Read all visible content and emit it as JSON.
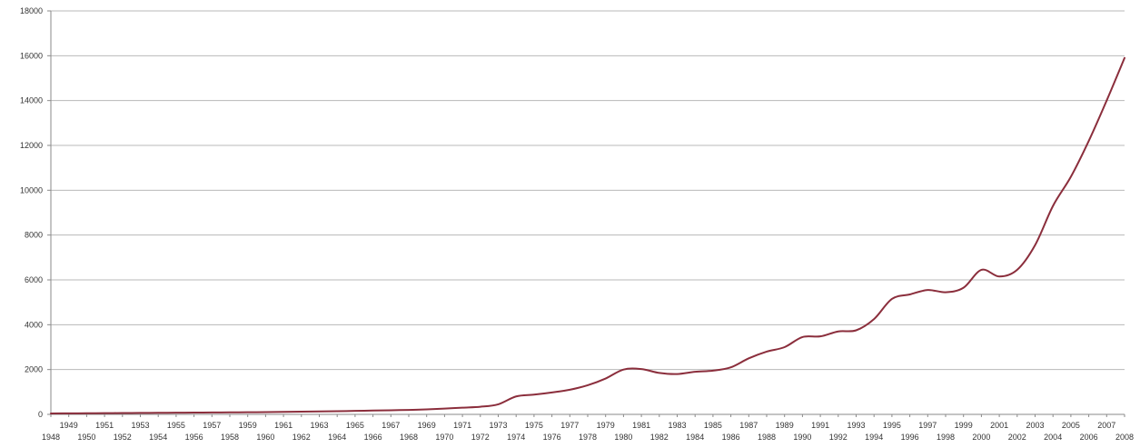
{
  "chart_data": {
    "type": "line",
    "title": "",
    "xlabel": "",
    "ylabel": "",
    "ylim": [
      0,
      18000
    ],
    "y_ticks": [
      0,
      2000,
      4000,
      6000,
      8000,
      10000,
      12000,
      14000,
      16000,
      18000
    ],
    "grid": true,
    "legend": "none",
    "line_color": "#8b2e3c",
    "x_tick_labels": [
      "1948",
      "1949",
      "1950",
      "1951",
      "1952",
      "1953",
      "1954",
      "1955",
      "1956",
      "1957",
      "1958",
      "1959",
      "1960",
      "1961",
      "1962",
      "1963",
      "1964",
      "1965",
      "1966",
      "1967",
      "1968",
      "1969",
      "1970",
      "1971",
      "1972",
      "1973",
      "1974",
      "1975",
      "1976",
      "1977",
      "1978",
      "1979",
      "1980",
      "1981",
      "1982",
      "1983",
      "1984",
      "1985",
      "1986",
      "1987",
      "1988",
      "1989",
      "1990",
      "1991",
      "1992",
      "1993",
      "1994",
      "1995",
      "1996",
      "1997",
      "1998",
      "1999",
      "2000",
      "2001",
      "2002",
      "2003",
      "2004",
      "2005",
      "2006",
      "2007",
      "2008"
    ],
    "series": [
      {
        "x": [
          1948,
          1949,
          1950,
          1951,
          1952,
          1953,
          1954,
          1955,
          1956,
          1957,
          1958,
          1959,
          1960,
          1961,
          1962,
          1963,
          1964,
          1965,
          1966,
          1967,
          1968,
          1969,
          1970,
          1971,
          1972,
          1973,
          1974,
          1975,
          1976,
          1977,
          1978,
          1979,
          1980,
          1981,
          1982,
          1983,
          1984,
          1985,
          1986,
          1987,
          1988,
          1989,
          1990,
          1991,
          1992,
          1993,
          1994,
          1995,
          1996,
          1997,
          1998,
          1999,
          2000,
          2001,
          2002,
          2003,
          2004,
          2005,
          2006,
          2007,
          2008
        ],
        "values": [
          40,
          45,
          50,
          55,
          60,
          65,
          70,
          75,
          80,
          85,
          90,
          95,
          100,
          110,
          120,
          130,
          140,
          155,
          170,
          185,
          200,
          225,
          260,
          300,
          340,
          450,
          800,
          880,
          980,
          1100,
          1300,
          1600,
          2000,
          2020,
          1850,
          1800,
          1900,
          1950,
          2100,
          2500,
          2800,
          3000,
          3450,
          3480,
          3700,
          3750,
          4250,
          5150,
          5350,
          5550,
          5450,
          5650,
          6450,
          6150,
          6450,
          7550,
          9300,
          10600,
          12200,
          14000,
          15900
        ]
      }
    ]
  }
}
